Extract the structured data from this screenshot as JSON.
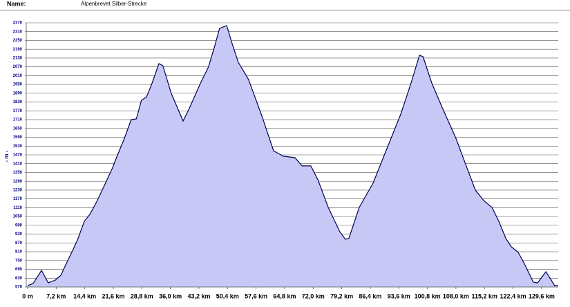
{
  "header": {
    "name_label": "Name:",
    "name_value": "Alpenbrevet Silber-Strecke"
  },
  "chart_data": {
    "type": "area",
    "ylabel": "- m -",
    "x": [
      0,
      1.4,
      3.5,
      5.2,
      7.0,
      8.4,
      9.6,
      11.7,
      12.7,
      14.3,
      15.7,
      17.4,
      19.2,
      21.4,
      22.6,
      24.4,
      26.1,
      27.4,
      28.7,
      30.0,
      31.4,
      33.1,
      34.1,
      36.2,
      39.2,
      40.9,
      43.6,
      45.6,
      47.0,
      48.4,
      50.2,
      51.4,
      53.1,
      55.7,
      59.2,
      62.0,
      64.5,
      67.4,
      69.2,
      71.4,
      73.2,
      75.8,
      78.7,
      80.1,
      81.0,
      83.6,
      87.1,
      90.6,
      94.1,
      96.7,
      98.8,
      99.7,
      101.9,
      104.5,
      108.0,
      110.6,
      112.9,
      115.0,
      117.1,
      118.8,
      120.6,
      122.0,
      123.7,
      125.4,
      127.5,
      128.6,
      130.7,
      132.9,
      133.8
    ],
    "values": [
      579,
      594,
      683,
      598,
      617,
      650,
      721,
      839,
      900,
      1018,
      1065,
      1150,
      1253,
      1381,
      1465,
      1583,
      1710,
      1715,
      1842,
      1866,
      1960,
      2092,
      2078,
      1890,
      1701,
      1795,
      1960,
      2069,
      2196,
      2332,
      2351,
      2243,
      2102,
      1984,
      1725,
      1498,
      1461,
      1451,
      1395,
      1395,
      1300,
      1112,
      947,
      895,
      900,
      1112,
      1277,
      1513,
      1748,
      1960,
      2149,
      2139,
      1960,
      1795,
      1583,
      1395,
      1230,
      1159,
      1112,
      1018,
      900,
      843,
      806,
      721,
      603,
      598,
      674,
      579,
      579
    ],
    "xlim": [
      0,
      133.8
    ],
    "ylim": [
      570,
      2370
    ],
    "xticks": [
      {
        "value": 0,
        "label": "0 m"
      },
      {
        "value": 7.2,
        "label": "7,2 km"
      },
      {
        "value": 14.4,
        "label": "14,4 km"
      },
      {
        "value": 21.6,
        "label": "21,6 km"
      },
      {
        "value": 28.8,
        "label": "28,8 km"
      },
      {
        "value": 36,
        "label": "36,0 km"
      },
      {
        "value": 43.2,
        "label": "43,2 km"
      },
      {
        "value": 50.4,
        "label": "50,4 km"
      },
      {
        "value": 57.6,
        "label": "57,6 km"
      },
      {
        "value": 64.8,
        "label": "64,8 km"
      },
      {
        "value": 72,
        "label": "72,0 km"
      },
      {
        "value": 79.2,
        "label": "79,2 km"
      },
      {
        "value": 86.4,
        "label": "86,4 km"
      },
      {
        "value": 93.6,
        "label": "93,6 km"
      },
      {
        "value": 100.8,
        "label": "100,8 km"
      },
      {
        "value": 108,
        "label": "108,0 km"
      },
      {
        "value": 115.2,
        "label": "115,2 km"
      },
      {
        "value": 122.4,
        "label": "122,4 km"
      },
      {
        "value": 129.6,
        "label": "129,6 km"
      }
    ],
    "yticks": [
      570,
      630,
      690,
      750,
      810,
      870,
      930,
      990,
      1050,
      1110,
      1170,
      1230,
      1290,
      1350,
      1410,
      1470,
      1530,
      1590,
      1650,
      1710,
      1770,
      1830,
      1890,
      1950,
      2010,
      2070,
      2130,
      2190,
      2250,
      2310,
      2370
    ],
    "grid": true,
    "color": "#c8c8f6",
    "line_color": "#00004e"
  }
}
